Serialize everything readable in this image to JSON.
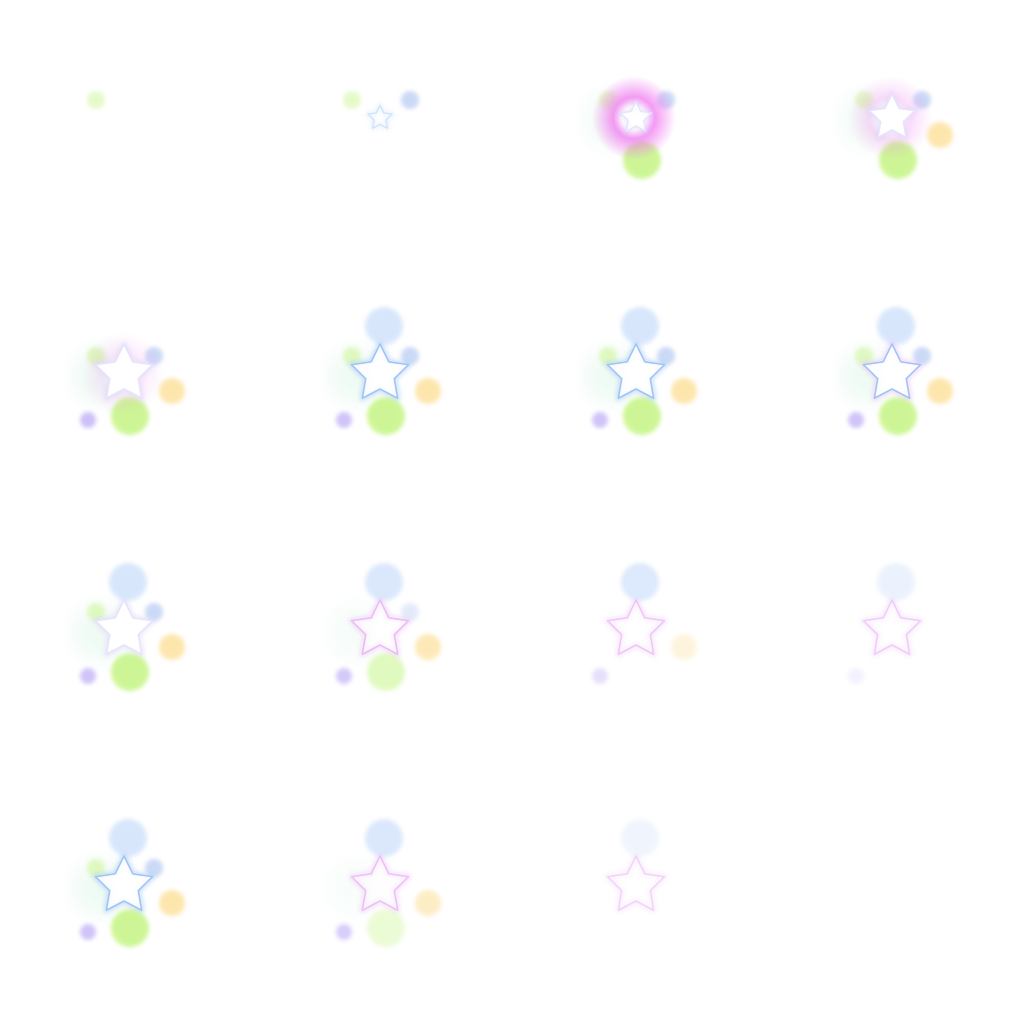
{
  "sprite_sheet": {
    "columns": 4,
    "rows": 4,
    "frame_count": 15,
    "colors": {
      "green": "#c8f58a",
      "blue": "#b9cdf2",
      "light_blue": "#cfe1fb",
      "orange": "#fde2a0",
      "purple": "#b7a6f5",
      "mint": "#e6f8ee",
      "magenta": "#f070f0",
      "star_blue": "#9fc4f5",
      "star_pink": "#eab8f5",
      "white": "#ffffff"
    },
    "frames": [
      {
        "green": 0.45,
        "blue": 0,
        "topblue": 0,
        "orange": 0,
        "purple": 0,
        "biggreen": 0,
        "mint": 0,
        "star": 0,
        "starStyle": "none",
        "magenta": 0,
        "starScale": 0.3
      },
      {
        "green": 0.45,
        "blue": 0.75,
        "topblue": 0,
        "orange": 0,
        "purple": 0,
        "biggreen": 0,
        "mint": 0,
        "star": 0.35,
        "starStyle": "blue",
        "magenta": 0,
        "starScale": 0.42
      },
      {
        "green": 0.45,
        "blue": 0.75,
        "topblue": 0,
        "orange": 0,
        "purple": 0,
        "biggreen": 0.9,
        "mint": 0.5,
        "star": 0.8,
        "starStyle": "white",
        "magenta": 1,
        "starScale": 0.55
      },
      {
        "green": 0.45,
        "blue": 0.75,
        "topblue": 0,
        "orange": 0.85,
        "purple": 0,
        "biggreen": 0.9,
        "mint": 0.5,
        "star": 1,
        "starStyle": "white",
        "magenta": 0.35,
        "starScale": 0.8
      },
      {
        "green": 0.55,
        "blue": 0.75,
        "topblue": 0,
        "orange": 0.85,
        "purple": 0.7,
        "biggreen": 0.9,
        "mint": 0.6,
        "star": 1,
        "starStyle": "white",
        "magenta": 0.2,
        "starScale": 1
      },
      {
        "green": 0.5,
        "blue": 0.75,
        "topblue": 0.8,
        "orange": 0.85,
        "purple": 0.65,
        "biggreen": 0.9,
        "mint": 0.6,
        "star": 1,
        "starStyle": "blue",
        "magenta": 0,
        "starScale": 1
      },
      {
        "green": 0.5,
        "blue": 0.75,
        "topblue": 0.8,
        "orange": 0.85,
        "purple": 0.65,
        "biggreen": 0.9,
        "mint": 0.6,
        "star": 1,
        "starStyle": "blue",
        "magenta": 0,
        "starScale": 1
      },
      {
        "green": 0.5,
        "blue": 0.75,
        "topblue": 0.8,
        "orange": 0.85,
        "purple": 0.65,
        "biggreen": 0.9,
        "mint": 0.6,
        "star": 1,
        "starStyle": "bluepink",
        "magenta": 0,
        "starScale": 1
      },
      {
        "green": 0.5,
        "blue": 0.75,
        "topblue": 0.8,
        "orange": 0.85,
        "purple": 0.65,
        "biggreen": 0.9,
        "mint": 0.6,
        "star": 1,
        "starStyle": "white",
        "magenta": 0,
        "starScale": 1
      },
      {
        "green": 0,
        "blue": 0.4,
        "topblue": 0.75,
        "orange": 0.75,
        "purple": 0.6,
        "biggreen": 0.55,
        "mint": 0.35,
        "star": 0.9,
        "starStyle": "pink",
        "magenta": 0,
        "starScale": 1
      },
      {
        "green": 0,
        "blue": 0,
        "topblue": 0.7,
        "orange": 0.35,
        "purple": 0.35,
        "biggreen": 0,
        "mint": 0,
        "star": 0.7,
        "starStyle": "pink",
        "magenta": 0,
        "starScale": 1
      },
      {
        "green": 0,
        "blue": 0,
        "topblue": 0.4,
        "orange": 0,
        "purple": 0.15,
        "biggreen": 0,
        "mint": 0,
        "star": 0.6,
        "starStyle": "pink",
        "magenta": 0,
        "starScale": 1
      },
      {
        "green": 0.5,
        "blue": 0.75,
        "topblue": 0.8,
        "orange": 0.85,
        "purple": 0.65,
        "biggreen": 0.9,
        "mint": 0.6,
        "star": 1,
        "starStyle": "blue",
        "magenta": 0,
        "starScale": 1
      },
      {
        "green": 0,
        "blue": 0,
        "topblue": 0.75,
        "orange": 0.6,
        "purple": 0.55,
        "biggreen": 0.35,
        "mint": 0.25,
        "star": 0.8,
        "starStyle": "pink",
        "magenta": 0,
        "starScale": 1
      },
      {
        "green": 0,
        "blue": 0,
        "topblue": 0.3,
        "orange": 0,
        "purple": 0,
        "biggreen": 0,
        "mint": 0,
        "star": 0.5,
        "starStyle": "pink",
        "magenta": 0,
        "starScale": 1
      }
    ]
  }
}
